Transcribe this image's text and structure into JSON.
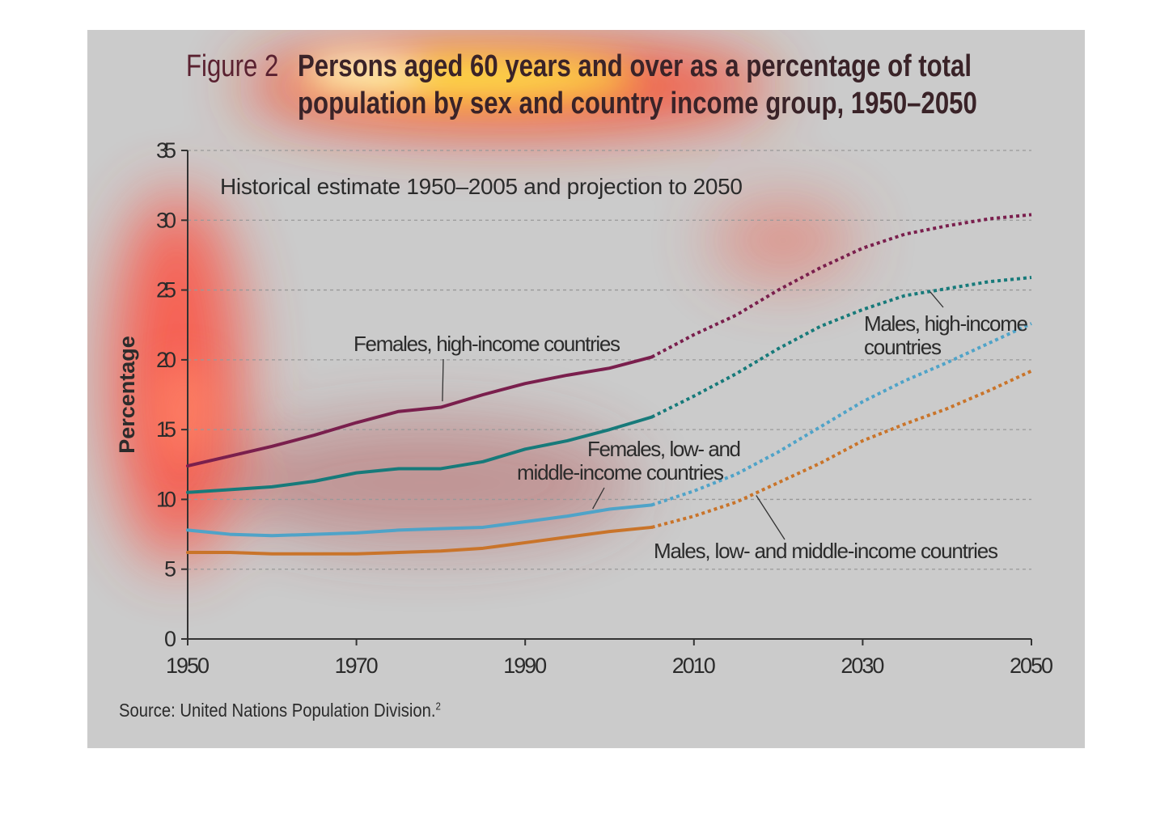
{
  "figure": {
    "label": "Figure 2",
    "title_line1": "Persons aged 60 years and over as a percentage of total",
    "title_line2": "population by sex and country income group, 1950–2050",
    "source_text": "Source: United Nations Population Division.",
    "source_sup": "2"
  },
  "colors": {
    "background": "#cbcbcb",
    "females_high": "#7a1f4d",
    "males_high": "#177a7a",
    "females_low": "#4fa3c8",
    "males_low": "#c9742a",
    "grid": "#999999",
    "axis": "#333333"
  },
  "chart_data": {
    "type": "line",
    "title": "Persons aged 60 years and over as a percentage of total population by sex and country income group, 1950–2050",
    "subtitle": "Historical estimate 1950–2005 and projection to 2050",
    "xlabel": "",
    "ylabel": "Percentage",
    "xlim": [
      1950,
      2050
    ],
    "ylim": [
      0,
      35
    ],
    "x_ticks": [
      1950,
      1970,
      1990,
      2010,
      2030,
      2050
    ],
    "y_ticks": [
      0,
      5,
      10,
      15,
      20,
      25,
      30,
      35
    ],
    "grid": "horizontal dashed",
    "projection_start": 2005,
    "series": [
      {
        "name": "Females, high-income countries",
        "color": "#7a1f4d",
        "historical": [
          [
            1950,
            12.4
          ],
          [
            1955,
            13.1
          ],
          [
            1960,
            13.8
          ],
          [
            1965,
            14.6
          ],
          [
            1970,
            15.5
          ],
          [
            1975,
            16.3
          ],
          [
            1980,
            16.6
          ],
          [
            1985,
            17.5
          ],
          [
            1990,
            18.3
          ],
          [
            1995,
            18.9
          ],
          [
            2000,
            19.4
          ],
          [
            2005,
            20.2
          ]
        ],
        "projection": [
          [
            2005,
            20.2
          ],
          [
            2010,
            21.8
          ],
          [
            2015,
            23.2
          ],
          [
            2020,
            25.0
          ],
          [
            2025,
            26.6
          ],
          [
            2030,
            28.0
          ],
          [
            2035,
            29.0
          ],
          [
            2040,
            29.6
          ],
          [
            2045,
            30.1
          ],
          [
            2050,
            30.4
          ]
        ]
      },
      {
        "name": "Males, high-income countries",
        "color": "#177a7a",
        "historical": [
          [
            1950,
            10.5
          ],
          [
            1955,
            10.7
          ],
          [
            1960,
            10.9
          ],
          [
            1965,
            11.3
          ],
          [
            1970,
            11.9
          ],
          [
            1975,
            12.2
          ],
          [
            1980,
            12.2
          ],
          [
            1985,
            12.7
          ],
          [
            1990,
            13.6
          ],
          [
            1995,
            14.2
          ],
          [
            2000,
            15.0
          ],
          [
            2005,
            15.9
          ]
        ],
        "projection": [
          [
            2005,
            15.9
          ],
          [
            2010,
            17.4
          ],
          [
            2015,
            19.0
          ],
          [
            2020,
            20.8
          ],
          [
            2025,
            22.4
          ],
          [
            2030,
            23.6
          ],
          [
            2035,
            24.6
          ],
          [
            2040,
            25.1
          ],
          [
            2045,
            25.6
          ],
          [
            2050,
            25.9
          ]
        ]
      },
      {
        "name": "Females, low- and middle-income countries",
        "color": "#4fa3c8",
        "historical": [
          [
            1950,
            7.8
          ],
          [
            1955,
            7.5
          ],
          [
            1960,
            7.4
          ],
          [
            1965,
            7.5
          ],
          [
            1970,
            7.6
          ],
          [
            1975,
            7.8
          ],
          [
            1980,
            7.9
          ],
          [
            1985,
            8.0
          ],
          [
            1990,
            8.4
          ],
          [
            1995,
            8.8
          ],
          [
            2000,
            9.3
          ],
          [
            2005,
            9.6
          ]
        ],
        "projection": [
          [
            2005,
            9.6
          ],
          [
            2010,
            10.6
          ],
          [
            2015,
            11.8
          ],
          [
            2020,
            13.4
          ],
          [
            2025,
            15.2
          ],
          [
            2030,
            17.0
          ],
          [
            2035,
            18.5
          ],
          [
            2040,
            19.8
          ],
          [
            2045,
            21.2
          ],
          [
            2050,
            22.6
          ]
        ]
      },
      {
        "name": "Males, low- and middle-income countries",
        "color": "#c9742a",
        "historical": [
          [
            1950,
            6.2
          ],
          [
            1955,
            6.2
          ],
          [
            1960,
            6.1
          ],
          [
            1965,
            6.1
          ],
          [
            1970,
            6.1
          ],
          [
            1975,
            6.2
          ],
          [
            1980,
            6.3
          ],
          [
            1985,
            6.5
          ],
          [
            1990,
            6.9
          ],
          [
            1995,
            7.3
          ],
          [
            2000,
            7.7
          ],
          [
            2005,
            8.0
          ]
        ],
        "projection": [
          [
            2005,
            8.0
          ],
          [
            2010,
            8.8
          ],
          [
            2015,
            9.8
          ],
          [
            2020,
            11.2
          ],
          [
            2025,
            12.6
          ],
          [
            2030,
            14.2
          ],
          [
            2035,
            15.4
          ],
          [
            2040,
            16.5
          ],
          [
            2045,
            17.8
          ],
          [
            2050,
            19.2
          ]
        ]
      }
    ],
    "annotations": [
      {
        "text": "Females, high-income countries",
        "x": 1980,
        "y": 16.8
      },
      {
        "text": "Males, high-income",
        "text2": "countries",
        "x": 2038,
        "y": 25.1
      },
      {
        "text": "Females, low- and",
        "text2": "middle-income countries",
        "x": 1998,
        "y": 9.2
      },
      {
        "text": "Males, low- and middle-income countries",
        "x": 2017,
        "y": 10.4
      }
    ]
  }
}
